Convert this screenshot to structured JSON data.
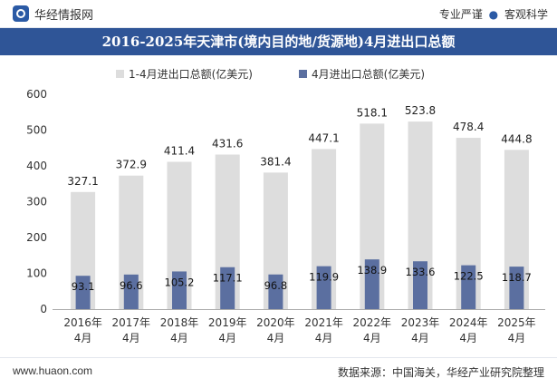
{
  "header": {
    "site_name": "华经情报网",
    "tag_1": "专业严谨",
    "tag_separator": "●",
    "tag_2": "客观科学"
  },
  "footer": {
    "url": "www.huaon.com",
    "source": "数据来源：中国海关，华经产业研究院整理"
  },
  "chart_data": {
    "type": "bar",
    "title": "2016-2025年天津市(境内目的地/货源地)4月进出口总额",
    "categories": [
      "2016年\n4月",
      "2017年\n4月",
      "2018年\n4月",
      "2019年\n4月",
      "2020年\n4月",
      "2021年\n4月",
      "2022年\n4月",
      "2023年\n4月",
      "2024年\n4月",
      "2025年\n4月"
    ],
    "series": [
      {
        "name": "1-4月进出口总额(亿美元)",
        "values": [
          327.1,
          372.9,
          411.4,
          431.6,
          381.4,
          447.1,
          518.1,
          523.8,
          478.4,
          444.8
        ],
        "color": "#dddddd"
      },
      {
        "name": "4月进出口总额(亿美元)",
        "values": [
          93.1,
          96.6,
          105.2,
          117.1,
          96.8,
          119.9,
          138.9,
          133.6,
          122.5,
          118.7
        ],
        "color": "#5b6fa0"
      }
    ],
    "ylim": [
      0,
      600
    ],
    "yticks": [
      0,
      100,
      200,
      300,
      400,
      500,
      600
    ],
    "grid": false,
    "legend": "top-center",
    "xlabel": "",
    "ylabel": ""
  }
}
